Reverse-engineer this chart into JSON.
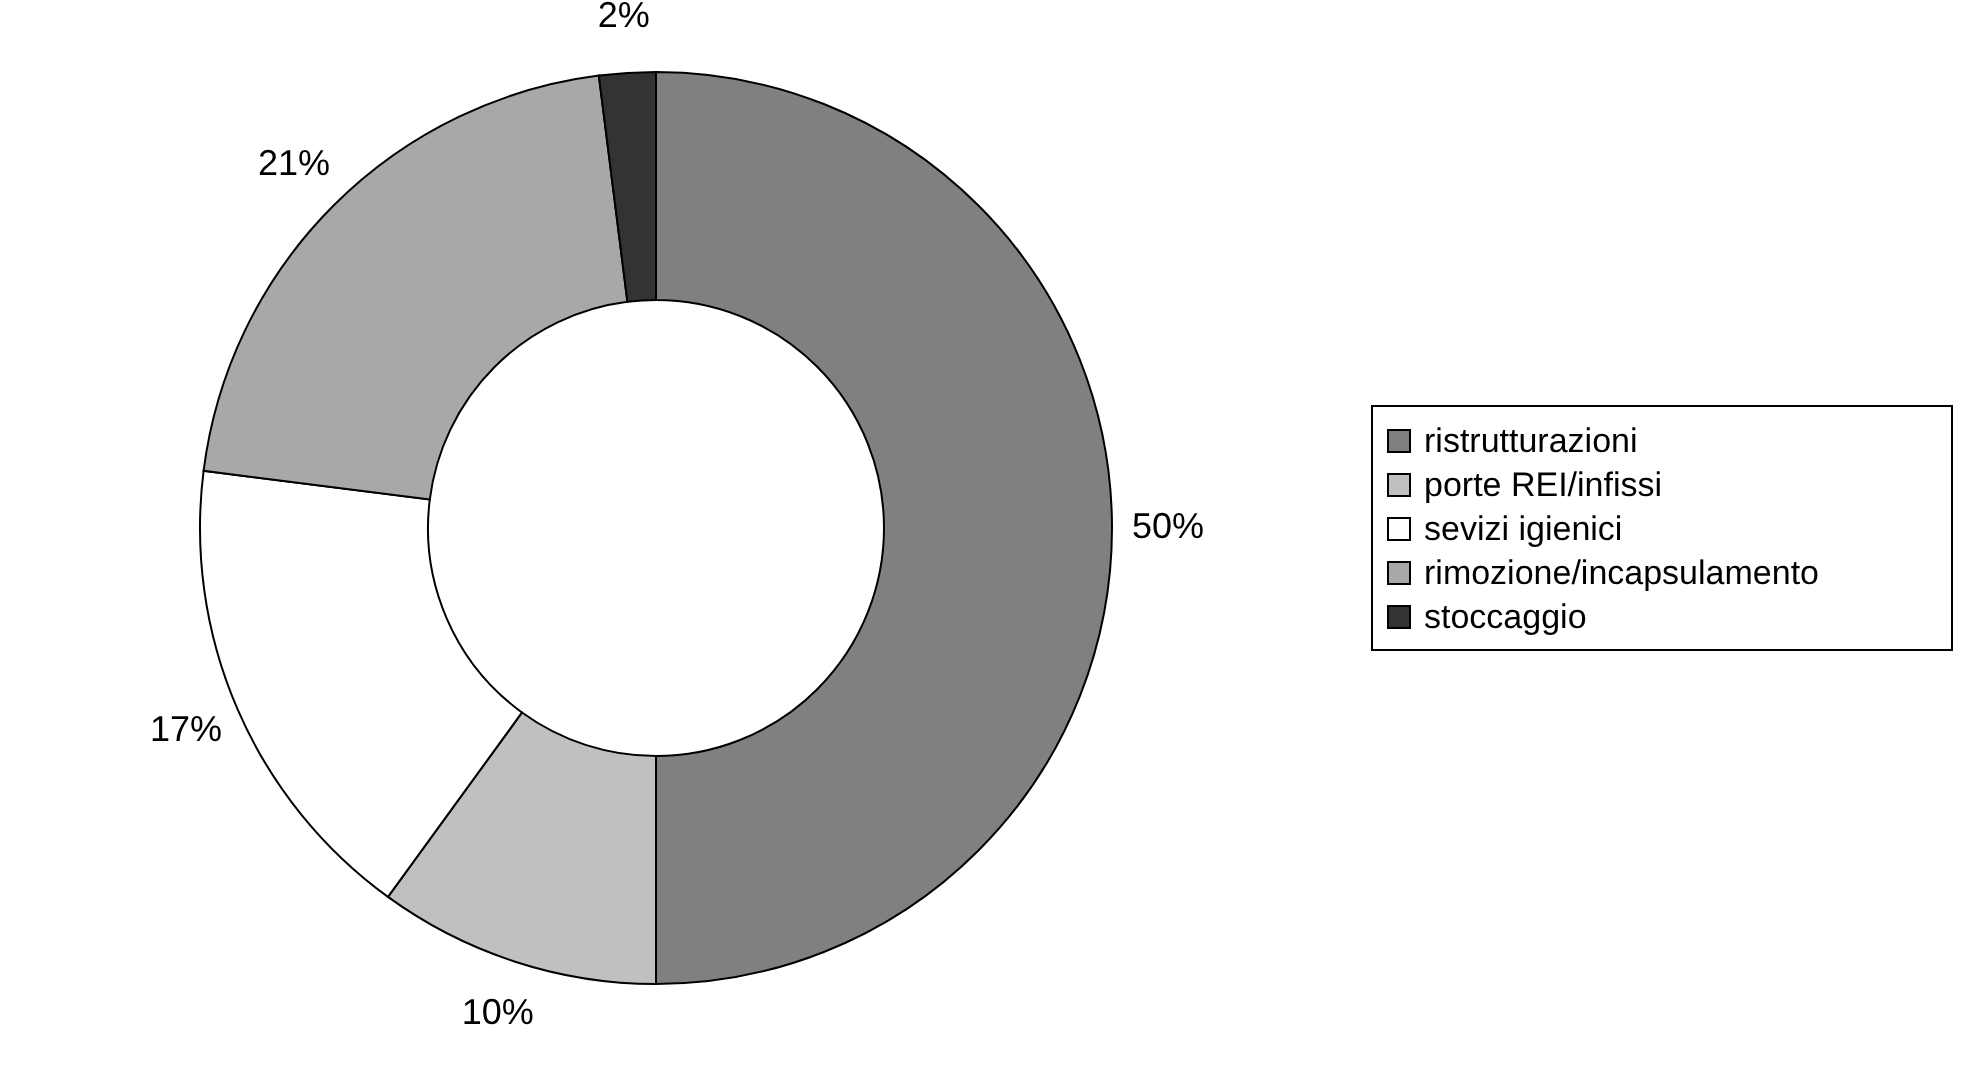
{
  "chart_data": {
    "type": "donut",
    "categories": [
      "ristrutturazioni",
      "porte REI/infissi",
      "sevizi igienici",
      "rimozione/incapsulamento",
      "stoccaggio"
    ],
    "values": [
      50,
      10,
      17,
      21,
      2
    ],
    "value_labels": [
      "50%",
      "10%",
      "17%",
      "21%",
      "2%"
    ],
    "colors": [
      "#808080",
      "#c0c0c0",
      "#ffffff",
      "#a8a8a8",
      "#333333"
    ],
    "legend": "right"
  }
}
